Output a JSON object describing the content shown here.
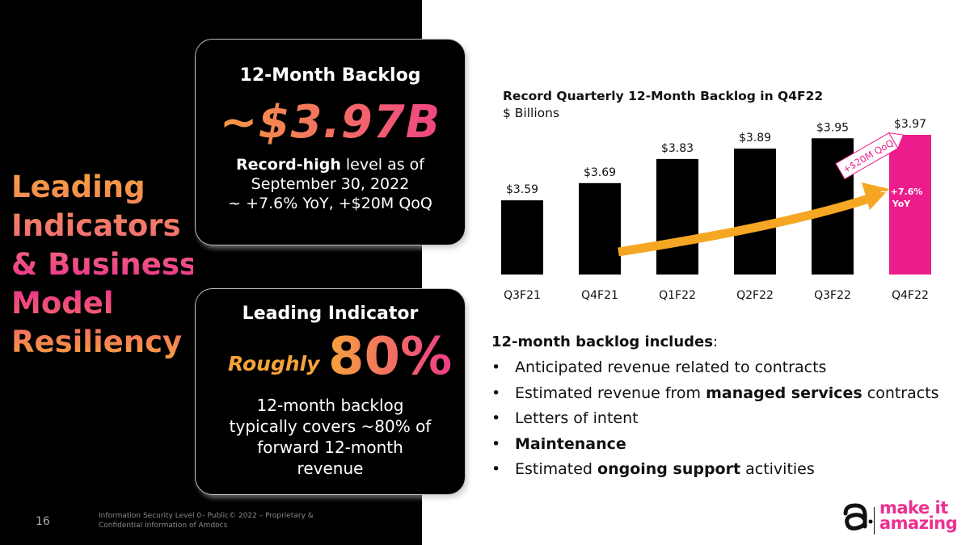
{
  "slide": {
    "title_lines": [
      "Leading",
      "Indicators",
      "& Business",
      "Model",
      "Resiliency"
    ],
    "page_number": "16",
    "footer": "Information Security Level 0– Public© 2022 – Proprietary & Confidential Information of Amdocs"
  },
  "card_backlog": {
    "heading": "12-Month Backlog",
    "value": "~$3.97B",
    "line1_bold": "Record-high",
    "line1_rest": " level as of",
    "line2": "September 30, 2022",
    "line3": "~ +7.6% YoY, +$20M QoQ"
  },
  "card_indicator": {
    "heading": "Leading Indicator",
    "roughly": "Roughly",
    "percent": "80%",
    "body": "12-month backlog typically covers ~80% of forward 12-month revenue"
  },
  "chart_data": {
    "type": "bar",
    "title": "Record Quarterly 12-Month Backlog in Q4F22",
    "subtitle": "$ Billions",
    "categories": [
      "Q3F21",
      "Q4F21",
      "Q1F22",
      "Q2F22",
      "Q3F22",
      "Q4F22"
    ],
    "values": [
      3.59,
      3.69,
      3.83,
      3.89,
      3.95,
      3.97
    ],
    "value_labels": [
      "$3.59",
      "$3.69",
      "$3.83",
      "$3.89",
      "$3.95",
      "$3.97"
    ],
    "colors": {
      "default": "#000000",
      "highlight": "#ec1c8c",
      "arrow": "#f5a623"
    },
    "highlight_index": 5,
    "annotations": {
      "qoq": "+$20M QoQ",
      "yoy_line1": "~ +7.6%",
      "yoy_line2": "YoY"
    }
  },
  "backlog_includes": {
    "heading_bold": "12-month backlog includes",
    "heading_rest": ":",
    "items": [
      {
        "pre": "Anticipated revenue related to contracts",
        "bold": "",
        "post": ""
      },
      {
        "pre": "Estimated revenue from ",
        "bold": "managed services",
        "post": " contracts"
      },
      {
        "pre": "Letters of intent",
        "bold": "",
        "post": ""
      },
      {
        "pre": "",
        "bold": "Maintenance",
        "post": ""
      },
      {
        "pre": "Estimated ",
        "bold": "ongoing support",
        "post": " activities"
      }
    ]
  },
  "logo": {
    "line1": "make it",
    "line2": "amazing",
    "brand_color": "#ec2f90"
  }
}
